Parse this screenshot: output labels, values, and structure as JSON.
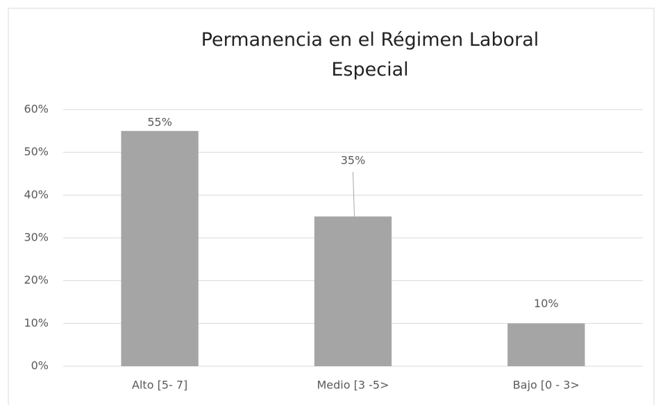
{
  "chart_data": {
    "type": "bar",
    "title": "Permanencia en el Régimen Laboral Especial",
    "categories": [
      "Alto [5- 7]",
      "Medio [3 -5>",
      "Bajo [0 - 3>"
    ],
    "values": [
      55,
      35,
      10
    ],
    "value_labels": [
      "55%",
      "35%",
      "10%"
    ],
    "color": "#a5a5a5",
    "ylim": [
      0,
      60
    ],
    "yticks": [
      {
        "value": 0,
        "label": "0%"
      },
      {
        "value": 10,
        "label": "10%"
      },
      {
        "value": 20,
        "label": "20%"
      },
      {
        "value": 30,
        "label": "30%"
      },
      {
        "value": 40,
        "label": "40%"
      },
      {
        "value": 50,
        "label": "50%"
      },
      {
        "value": 60,
        "label": "60%"
      }
    ],
    "grid": true
  }
}
